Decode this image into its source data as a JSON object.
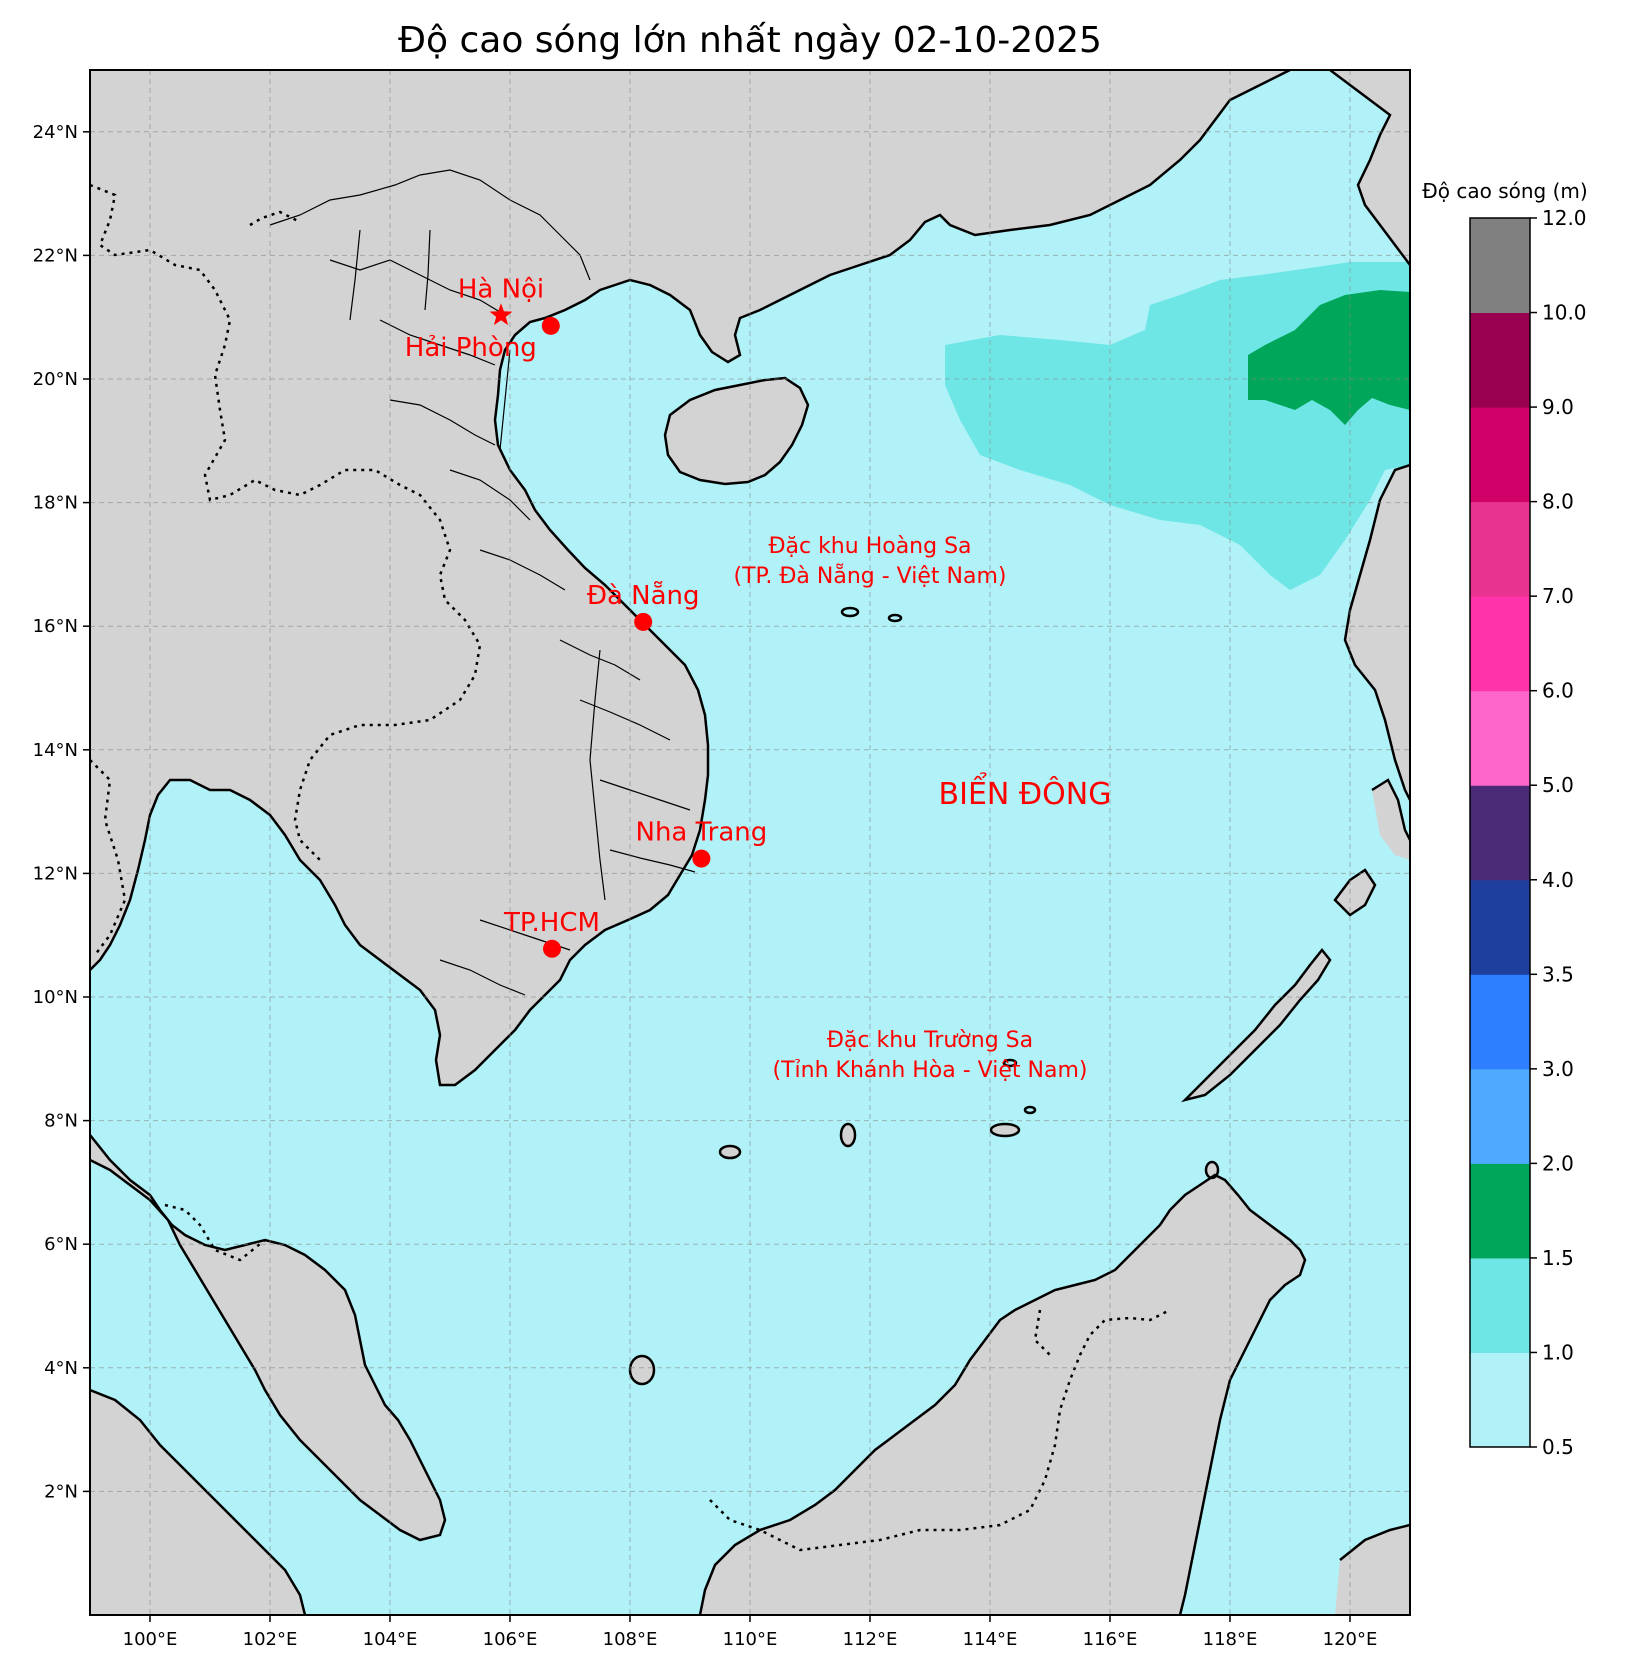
{
  "title": "Độ cao sóng lớn nhất ngày 02-10-2025",
  "colors": {
    "sea": "#b0f2f7",
    "land": "#d3d3d3",
    "marker": "#ff0000",
    "label": "#ff0000"
  },
  "map_extent": {
    "lon": [
      99,
      121
    ],
    "lat": [
      0,
      25
    ]
  },
  "lon_ticks": [
    {
      "value": 100,
      "label": "100°E"
    },
    {
      "value": 102,
      "label": "102°E"
    },
    {
      "value": 104,
      "label": "104°E"
    },
    {
      "value": 106,
      "label": "106°E"
    },
    {
      "value": 108,
      "label": "108°E"
    },
    {
      "value": 110,
      "label": "110°E"
    },
    {
      "value": 112,
      "label": "112°E"
    },
    {
      "value": 114,
      "label": "114°E"
    },
    {
      "value": 116,
      "label": "116°E"
    },
    {
      "value": 118,
      "label": "118°E"
    },
    {
      "value": 120,
      "label": "120°E"
    }
  ],
  "lat_ticks": [
    {
      "value": 2,
      "label": "2°N"
    },
    {
      "value": 4,
      "label": "4°N"
    },
    {
      "value": 6,
      "label": "6°N"
    },
    {
      "value": 8,
      "label": "8°N"
    },
    {
      "value": 10,
      "label": "10°N"
    },
    {
      "value": 12,
      "label": "12°N"
    },
    {
      "value": 14,
      "label": "14°N"
    },
    {
      "value": 16,
      "label": "16°N"
    },
    {
      "value": 18,
      "label": "18°N"
    },
    {
      "value": 20,
      "label": "20°N"
    },
    {
      "value": 22,
      "label": "22°N"
    },
    {
      "value": 24,
      "label": "24°N"
    }
  ],
  "cities": [
    {
      "name": "Hà Nội",
      "lon": 105.85,
      "lat": 21.03,
      "marker": "star"
    },
    {
      "name": "Hải Phòng",
      "lon": 106.68,
      "lat": 20.86,
      "marker": "circle"
    },
    {
      "name": "Đà Nẵng",
      "lon": 108.22,
      "lat": 16.07,
      "marker": "circle"
    },
    {
      "name": "Nha Trang",
      "lon": 109.19,
      "lat": 12.24,
      "marker": "circle"
    },
    {
      "name": "TP.HCM",
      "lon": 106.7,
      "lat": 10.78,
      "marker": "circle"
    }
  ],
  "regions": [
    {
      "lines": [
        "Đặc khu Hoàng Sa",
        "(TP. Đà Nẵng - Việt Nam)"
      ]
    },
    {
      "lines": [
        "Đặc khu Trường Sa",
        "(Tỉnh Khánh Hòa - Việt Nam)"
      ]
    }
  ],
  "sea_label": "BIỂN ĐÔNG",
  "colorbar": {
    "title": "Độ cao sóng (m)",
    "levels": [
      {
        "from": 0.5,
        "to": 1.0,
        "color": "#b0f2f7"
      },
      {
        "from": 1.0,
        "to": 1.5,
        "color": "#6ee6e6"
      },
      {
        "from": 1.5,
        "to": 2.0,
        "color": "#00a65a"
      },
      {
        "from": 2.0,
        "to": 3.0,
        "color": "#4daaff"
      },
      {
        "from": 3.0,
        "to": 3.5,
        "color": "#2e7fff"
      },
      {
        "from": 3.5,
        "to": 4.0,
        "color": "#1e3f9e"
      },
      {
        "from": 4.0,
        "to": 5.0,
        "color": "#4b2a78"
      },
      {
        "from": 5.0,
        "to": 6.0,
        "color": "#ff66cc"
      },
      {
        "from": 6.0,
        "to": 7.0,
        "color": "#ff33aa"
      },
      {
        "from": 7.0,
        "to": 8.0,
        "color": "#e83390"
      },
      {
        "from": 8.0,
        "to": 9.0,
        "color": "#d10068"
      },
      {
        "from": 9.0,
        "to": 10.0,
        "color": "#990050"
      },
      {
        "from": 10.0,
        "to": 12.0,
        "color": "#808080"
      }
    ],
    "tick_labels": [
      "0.5",
      "1.0",
      "1.5",
      "2.0",
      "3.0",
      "3.5",
      "4.0",
      "5.0",
      "6.0",
      "7.0",
      "8.0",
      "9.0",
      "10.0",
      "12.0"
    ]
  },
  "wave_zones": [
    {
      "level": "1.0-1.5",
      "lon": [
        113.3,
        121
      ],
      "lat": [
        16.6,
        21.9
      ]
    },
    {
      "level": "1.5-2.0",
      "lon": [
        117.8,
        121
      ],
      "lat": [
        19.2,
        21.4
      ]
    }
  ]
}
